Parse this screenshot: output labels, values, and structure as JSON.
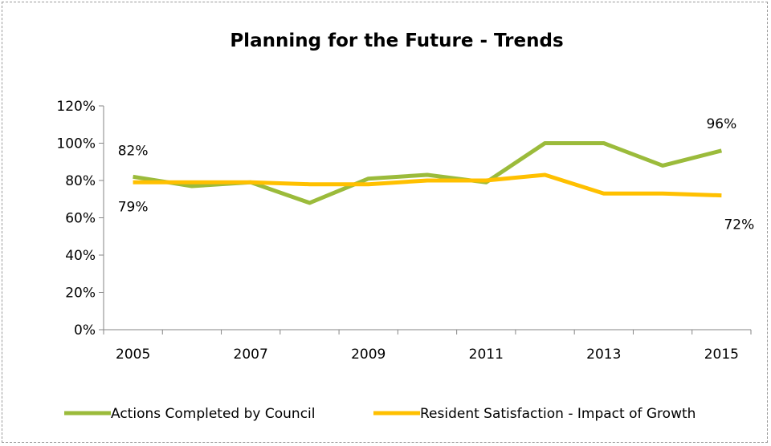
{
  "chart_data": {
    "type": "line",
    "title": "Planning for the Future - Trends",
    "x": [
      2005,
      2006,
      2007,
      2008,
      2009,
      2010,
      2011,
      2012,
      2013,
      2014,
      2015
    ],
    "x_tick_labels": [
      "2005",
      "2007",
      "2009",
      "2011",
      "2013",
      "2015"
    ],
    "y_tick_labels": [
      "0%",
      "20%",
      "40%",
      "60%",
      "80%",
      "100%",
      "120%"
    ],
    "ylim": [
      0,
      120
    ],
    "grid": false,
    "legend_position": "bottom",
    "series": [
      {
        "name": "Actions Completed by Council",
        "color": "#9BBB3B",
        "values": [
          82,
          77,
          79,
          68,
          81,
          83,
          79,
          100,
          100,
          88,
          96
        ],
        "labels": {
          "first": "82%",
          "last": "96%"
        }
      },
      {
        "name": "Resident Satisfaction - Impact of Growth",
        "color": "#FFC000",
        "values": [
          79,
          79,
          79,
          78,
          78,
          80,
          80,
          83,
          73,
          73,
          72
        ],
        "labels": {
          "first": "79%",
          "last": "72%"
        }
      }
    ]
  }
}
